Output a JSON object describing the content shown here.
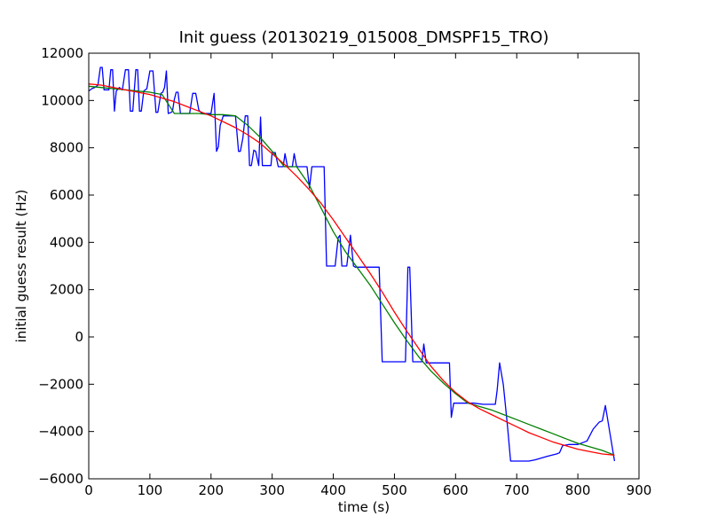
{
  "chart_data": {
    "type": "line",
    "title": "Init guess (20130219_015008_DMSPF15_TRO)",
    "xlabel": "time (s)",
    "ylabel": "initial guess result (Hz)",
    "xlim": [
      0,
      900
    ],
    "ylim": [
      -6000,
      12000
    ],
    "xticks": [
      0,
      100,
      200,
      300,
      400,
      500,
      600,
      700,
      800,
      900
    ],
    "yticks": [
      -6000,
      -4000,
      -2000,
      0,
      2000,
      4000,
      6000,
      8000,
      10000,
      12000
    ],
    "grid": false,
    "legend": "none",
    "series": [
      {
        "color": "#0000ff",
        "x": [
          0,
          5,
          10,
          15,
          19,
          22,
          25,
          33,
          36,
          39,
          42,
          45,
          50,
          55,
          60,
          65,
          68,
          72,
          77,
          80,
          83,
          86,
          90,
          95,
          100,
          105,
          110,
          113,
          118,
          121,
          124,
          127,
          130,
          135,
          137,
          140,
          143,
          146,
          150,
          165,
          170,
          175,
          180,
          185,
          200,
          205,
          209,
          212,
          215,
          220,
          225,
          230,
          235,
          240,
          245,
          248,
          252,
          256,
          260,
          263,
          266,
          270,
          273,
          278,
          281,
          284,
          288,
          293,
          298,
          300,
          305,
          310,
          315,
          318,
          321,
          325,
          330,
          333,
          336,
          340,
          345,
          350,
          357,
          361,
          365,
          370,
          375,
          380,
          385,
          389,
          392,
          398,
          403,
          408,
          411,
          414,
          418,
          422,
          428,
          433,
          436,
          440,
          445,
          450,
          460,
          475,
          480,
          484,
          490,
          500,
          510,
          518,
          522,
          525,
          530,
          540,
          545,
          548,
          552,
          558,
          565,
          575,
          590,
          593,
          597,
          600,
          610,
          620,
          630,
          645,
          655,
          660,
          665,
          668,
          672,
          678,
          685,
          690,
          720,
          730,
          750,
          765,
          770,
          775,
          785,
          800,
          815,
          825,
          835,
          840,
          845,
          852,
          860
        ],
        "y": [
          10400,
          10500,
          10550,
          10650,
          11400,
          11400,
          10450,
          10450,
          11300,
          11300,
          9550,
          10400,
          10550,
          10450,
          11300,
          11300,
          9550,
          9550,
          11300,
          11300,
          9550,
          9550,
          10400,
          10500,
          11250,
          11250,
          9500,
          9500,
          10300,
          10350,
          10550,
          11250,
          9450,
          9500,
          9550,
          10050,
          10350,
          10350,
          9450,
          9450,
          10300,
          10300,
          9600,
          9450,
          9450,
          10300,
          7850,
          8050,
          8950,
          9350,
          9350,
          9350,
          9350,
          9350,
          7850,
          7850,
          8400,
          9350,
          9350,
          7250,
          7250,
          7900,
          7850,
          7250,
          9300,
          7250,
          7250,
          7250,
          7250,
          7800,
          7800,
          7200,
          7200,
          7200,
          7750,
          7200,
          7200,
          7200,
          7750,
          7200,
          7200,
          7200,
          7200,
          6300,
          7200,
          7200,
          7200,
          7200,
          7200,
          3000,
          3000,
          3000,
          3000,
          4200,
          4300,
          3000,
          3000,
          3000,
          4300,
          3000,
          2950,
          2950,
          2950,
          2950,
          2950,
          2950,
          -1050,
          -1050,
          -1050,
          -1050,
          -1050,
          -1050,
          2950,
          2950,
          -1050,
          -1050,
          -1050,
          -300,
          -1100,
          -1100,
          -1100,
          -1100,
          -1100,
          -3400,
          -2800,
          -2800,
          -2800,
          -2800,
          -2800,
          -2850,
          -2850,
          -2850,
          -2850,
          -2250,
          -1100,
          -2000,
          -3800,
          -5250,
          -5250,
          -5200,
          -5050,
          -4950,
          -4900,
          -4600,
          -4550,
          -4550,
          -4400,
          -3900,
          -3600,
          -3550,
          -2900,
          -4000,
          -5250
        ]
      },
      {
        "color": "#007f00",
        "x": [
          0,
          20,
          40,
          60,
          80,
          100,
          120,
          140,
          160,
          180,
          200,
          220,
          240,
          260,
          280,
          300,
          320,
          340,
          360,
          380,
          400,
          420,
          440,
          460,
          480,
          500,
          520,
          540,
          560,
          580,
          600,
          620,
          640,
          660,
          680,
          700,
          720,
          740,
          760,
          780,
          800,
          820,
          840,
          860
        ],
        "y": [
          10600,
          10550,
          10500,
          10450,
          10400,
          10350,
          10250,
          9450,
          9450,
          9450,
          9400,
          9400,
          9350,
          8950,
          8450,
          7850,
          7200,
          7200,
          6450,
          5450,
          4450,
          3600,
          2900,
          2200,
          1400,
          600,
          -150,
          -850,
          -1450,
          -1950,
          -2400,
          -2800,
          -2950,
          -3100,
          -3300,
          -3500,
          -3700,
          -3900,
          -4100,
          -4300,
          -4500,
          -4650,
          -4800,
          -5000
        ]
      },
      {
        "color": "#ff0000",
        "x": [
          0,
          20,
          40,
          60,
          80,
          100,
          120,
          140,
          160,
          180,
          200,
          220,
          240,
          260,
          280,
          300,
          320,
          340,
          360,
          380,
          400,
          420,
          440,
          460,
          480,
          500,
          520,
          540,
          560,
          580,
          600,
          620,
          640,
          660,
          680,
          700,
          720,
          740,
          760,
          780,
          800,
          820,
          840,
          860
        ],
        "y": [
          10700,
          10650,
          10550,
          10450,
          10350,
          10250,
          10100,
          9950,
          9750,
          9550,
          9350,
          9100,
          8850,
          8550,
          8200,
          7750,
          7300,
          6800,
          6250,
          5650,
          4950,
          4200,
          3450,
          2700,
          1900,
          1050,
          250,
          -500,
          -1250,
          -1850,
          -2350,
          -2750,
          -3050,
          -3300,
          -3550,
          -3800,
          -4050,
          -4250,
          -4450,
          -4600,
          -4750,
          -4850,
          -4950,
          -5000
        ]
      }
    ]
  }
}
